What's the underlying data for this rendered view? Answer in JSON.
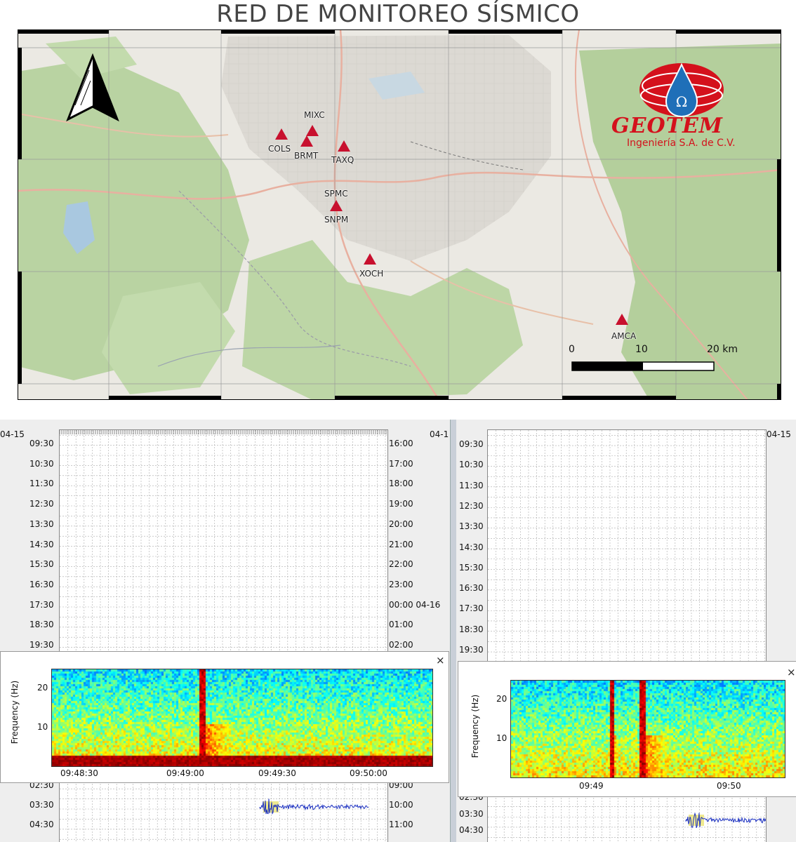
{
  "title": "RED DE MONITOREO SÍSMICO",
  "logo": {
    "name": "GEOTEM",
    "subtitle": "Ingeniería S.A. de C.V.",
    "color": "#d4111c"
  },
  "stations": [
    {
      "code": "COLS"
    },
    {
      "code": "MIXC"
    },
    {
      "code": "BRMT"
    },
    {
      "code": "TAXQ"
    },
    {
      "code": "SPMC"
    },
    {
      "code": "SNPM"
    },
    {
      "code": "XOCH"
    },
    {
      "code": "AMCA"
    }
  ],
  "scalebar": {
    "labels": [
      "0",
      "10",
      "20 km"
    ]
  },
  "colors": {
    "station": "#c8102e",
    "map_bg": "#e9e7e1",
    "forest": "#b8d3a0",
    "urban": "#d9d6d0",
    "trace": "#1a2fc0"
  },
  "helicorder_left": {
    "top_left_date": "04-15",
    "top_right_date": "04-1",
    "left_times": [
      "09:30",
      "10:30",
      "11:30",
      "12:30",
      "13:30",
      "14:30",
      "15:30",
      "16:30",
      "17:30",
      "18:30",
      "19:30"
    ],
    "right_times": [
      "16:00",
      "17:00",
      "18:00",
      "19:00",
      "20:00",
      "21:00",
      "22:00",
      "23:00",
      "00:00 04-16",
      "01:00",
      "02:00"
    ],
    "bottom_left_times": [
      "02:30",
      "03:30",
      "04:30"
    ],
    "bottom_right_times": [
      "09:00",
      "10:00",
      "11:00"
    ]
  },
  "helicorder_right": {
    "top_right_date": "04-15",
    "left_times": [
      "09:30",
      "10:30",
      "11:30",
      "12:30",
      "13:30",
      "14:30",
      "15:30",
      "16:30",
      "17:30",
      "18:30",
      "19:30"
    ],
    "bottom_left_times": [
      "02:30",
      "03:30",
      "04:30"
    ]
  },
  "spectrogram_left": {
    "ylabel": "Frequency (Hz)",
    "yticks": [
      "20",
      "10"
    ],
    "xticks": [
      "09:48:30",
      "09:49:00",
      "09:49:30",
      "09:50:00"
    ],
    "close_label": "×"
  },
  "spectrogram_right": {
    "ylabel": "Frequency (Hz)",
    "yticks": [
      "20",
      "10"
    ],
    "xticks": [
      "09:49",
      "09:50"
    ],
    "close_label": "×"
  }
}
